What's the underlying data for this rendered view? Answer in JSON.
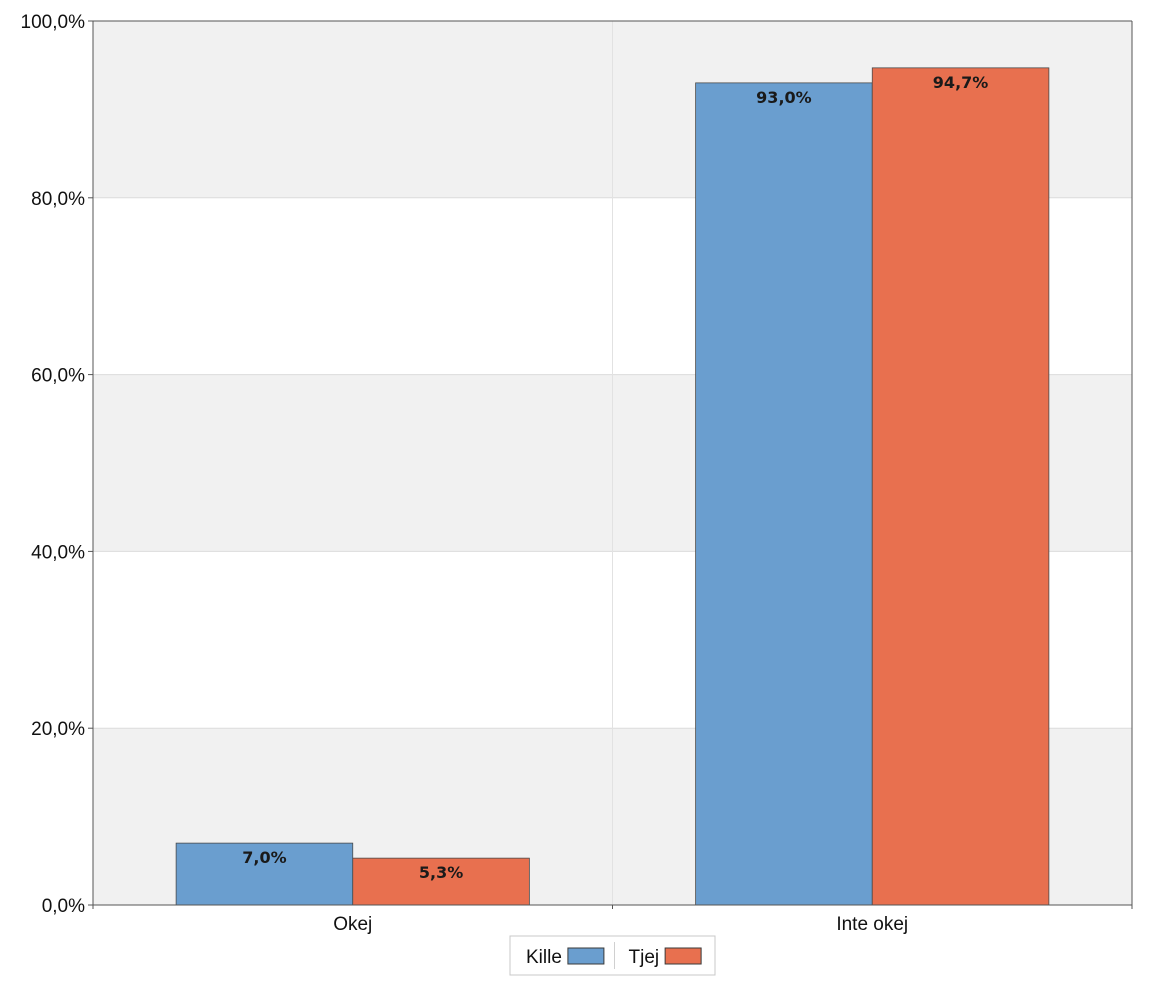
{
  "chart_data": {
    "type": "bar",
    "categories": [
      "Okej",
      "Inte okej"
    ],
    "series": [
      {
        "name": "Kille",
        "values": [
          7.0,
          93.0
        ],
        "color": "#6a9ecf"
      },
      {
        "name": "Tjej",
        "values": [
          5.3,
          94.7
        ],
        "color": "#e8704f"
      }
    ],
    "data_labels": [
      [
        "7,0%",
        "93,0%"
      ],
      [
        "5,3%",
        "94,7%"
      ]
    ],
    "y_ticks": [
      {
        "value": 0,
        "label": "0,0%"
      },
      {
        "value": 20,
        "label": "20,0%"
      },
      {
        "value": 40,
        "label": "40,0%"
      },
      {
        "value": 60,
        "label": "60,0%"
      },
      {
        "value": 80,
        "label": "80,0%"
      },
      {
        "value": 100,
        "label": "100,0%"
      }
    ],
    "ylim": [
      0,
      100
    ],
    "grid": true,
    "band_color": "#f1f1f1",
    "legend_position": "bottom-center"
  }
}
